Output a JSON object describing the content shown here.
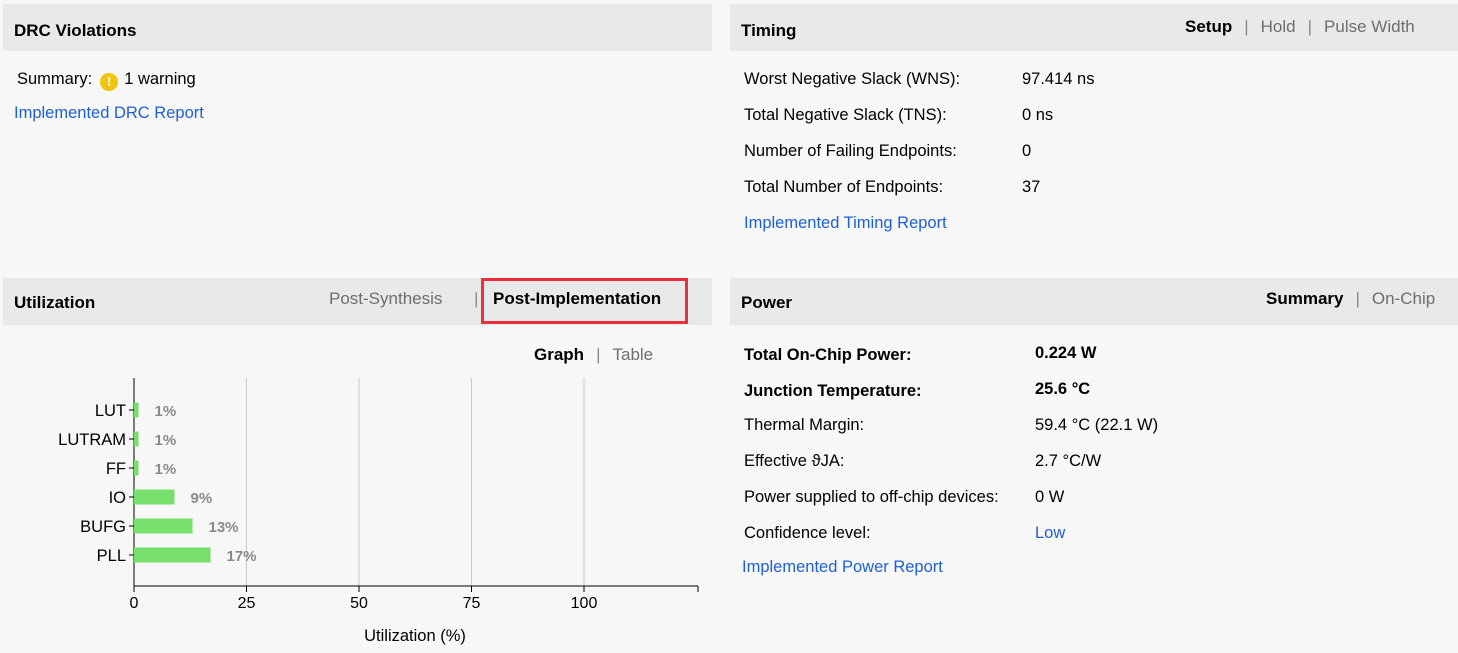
{
  "drc": {
    "title": "DRC Violations",
    "summary_label": "Summary:",
    "summary_value": "1 warning",
    "report_link": "Implemented DRC Report"
  },
  "timing": {
    "title": "Timing",
    "tabs": [
      {
        "label": "Setup",
        "active": true
      },
      {
        "label": "Hold",
        "active": false
      },
      {
        "label": "Pulse Width",
        "active": false
      }
    ],
    "rows": [
      {
        "label": "Worst Negative Slack (WNS):",
        "value": "97.414 ns"
      },
      {
        "label": "Total Negative Slack (TNS):",
        "value": "0 ns"
      },
      {
        "label": "Number of Failing Endpoints:",
        "value": "0"
      },
      {
        "label": "Total Number of Endpoints:",
        "value": "37"
      }
    ],
    "report_link": "Implemented Timing Report"
  },
  "utilization": {
    "title": "Utilization",
    "tabs": [
      {
        "label": "Post-Synthesis",
        "active": false
      },
      {
        "label": "Post-Implementation",
        "active": true
      }
    ],
    "view_tabs": [
      {
        "label": "Graph",
        "active": true
      },
      {
        "label": "Table",
        "active": false
      }
    ]
  },
  "power": {
    "title": "Power",
    "tabs": [
      {
        "label": "Summary",
        "active": true
      },
      {
        "label": "On-Chip",
        "active": false
      }
    ],
    "rows": [
      {
        "label": "Total On-Chip Power:",
        "value": "0.224 W"
      },
      {
        "label": "Junction Temperature:",
        "value": "25.6 °C"
      },
      {
        "label": "Thermal Margin:",
        "value": "59.4 °C (22.1 W)"
      },
      {
        "label": "Effective ϑJA:",
        "value": "2.7 °C/W"
      },
      {
        "label": "Power supplied to off-chip devices:",
        "value": "0 W"
      },
      {
        "label": "Confidence level:",
        "value": "Low"
      }
    ],
    "report_link": "Implemented Power Report"
  },
  "chart_data": {
    "type": "bar",
    "orientation": "horizontal",
    "categories": [
      "LUT",
      "LUTRAM",
      "FF",
      "IO",
      "BUFG",
      "PLL"
    ],
    "values": [
      1,
      1,
      1,
      9,
      13,
      17
    ],
    "value_labels": [
      "1%",
      "1%",
      "1%",
      "9%",
      "13%",
      "17%"
    ],
    "xlabel": "Utilization (%)",
    "xticks": [
      0,
      25,
      50,
      75,
      100
    ],
    "xlim": [
      0,
      125
    ],
    "grid": "vertical",
    "bar_color": "#77e06a",
    "label_color": "#8a8a8a"
  },
  "colors": {
    "link": "#1f5fd6",
    "header_bg": "#e9e9e9",
    "highlight_border": "#e8313a",
    "warning": "#f1c40f"
  }
}
